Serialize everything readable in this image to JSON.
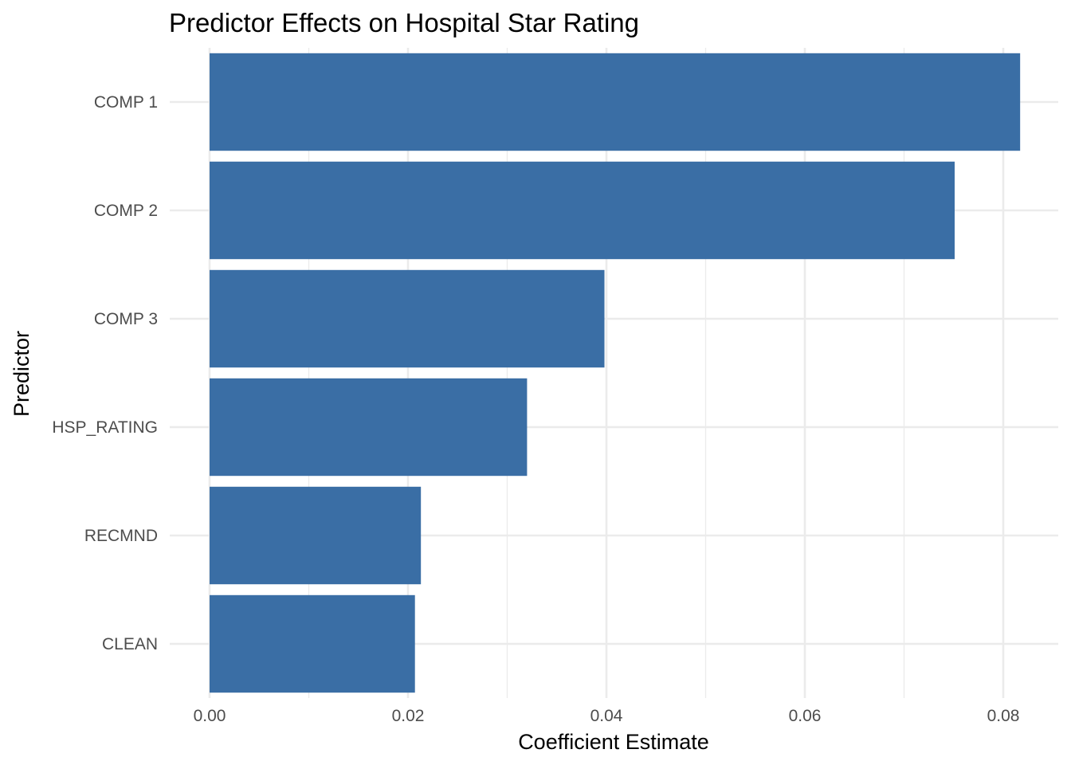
{
  "chart_data": {
    "type": "bar",
    "orientation": "horizontal",
    "title": "Predictor Effects on Hospital Star Rating",
    "xlabel": "Coefficient Estimate",
    "ylabel": "Predictor",
    "categories": [
      "COMP 1",
      "COMP 2",
      "COMP 3",
      "HSP_RATING",
      "RECMND",
      "CLEAN"
    ],
    "values": [
      0.0817,
      0.0751,
      0.0398,
      0.032,
      0.0213,
      0.0207
    ],
    "xlim": [
      0,
      0.085
    ],
    "x_ticks": [
      0.0,
      0.02,
      0.04,
      0.06,
      0.08
    ],
    "x_tick_labels": [
      "0.00",
      "0.02",
      "0.04",
      "0.06",
      "0.08"
    ],
    "grid": true,
    "legend": "none",
    "bar_color": "#3a6ea5"
  }
}
